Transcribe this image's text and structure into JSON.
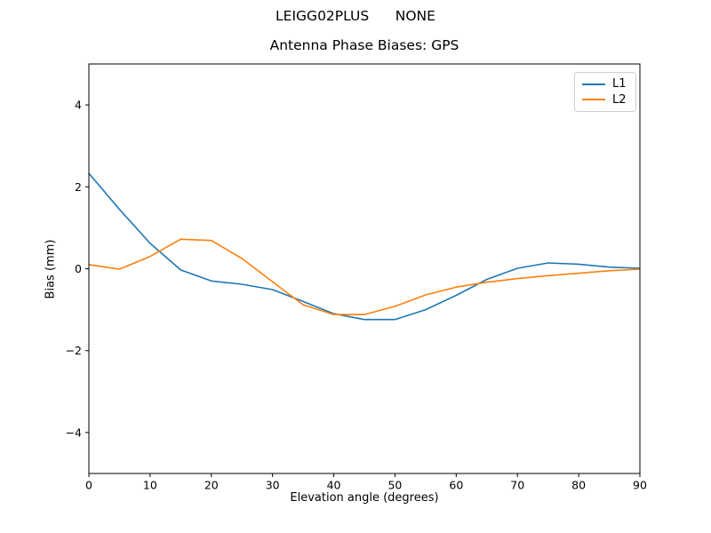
{
  "figure": {
    "suptitle": "LEIGG02PLUS      NONE",
    "background": "#ffffff"
  },
  "chart_data": {
    "type": "line",
    "title": "Antenna Phase Biases: GPS",
    "xlabel": "Elevation angle (degrees)",
    "ylabel": "Bias (mm)",
    "xlim": [
      0,
      90
    ],
    "ylim": [
      -5,
      5
    ],
    "xticks": [
      0,
      10,
      20,
      30,
      40,
      50,
      60,
      70,
      80,
      90
    ],
    "yticks": [
      -4,
      -2,
      0,
      2,
      4
    ],
    "grid": false,
    "legend_position": "upper right",
    "x": [
      0,
      5,
      10,
      15,
      20,
      25,
      30,
      35,
      40,
      45,
      50,
      55,
      60,
      65,
      70,
      75,
      80,
      85,
      90
    ],
    "series": [
      {
        "name": "L1",
        "color": "#1f77b4",
        "values": [
          2.33,
          1.45,
          0.62,
          -0.03,
          -0.3,
          -0.38,
          -0.51,
          -0.8,
          -1.1,
          -1.24,
          -1.24,
          -1.0,
          -0.65,
          -0.26,
          0.01,
          0.14,
          0.11,
          0.04,
          0.01
        ]
      },
      {
        "name": "L2",
        "color": "#ff7f0e",
        "values": [
          0.1,
          -0.01,
          0.3,
          0.72,
          0.69,
          0.25,
          -0.32,
          -0.88,
          -1.12,
          -1.12,
          -0.92,
          -0.64,
          -0.45,
          -0.33,
          -0.24,
          -0.17,
          -0.11,
          -0.05,
          -0.01
        ]
      }
    ]
  }
}
